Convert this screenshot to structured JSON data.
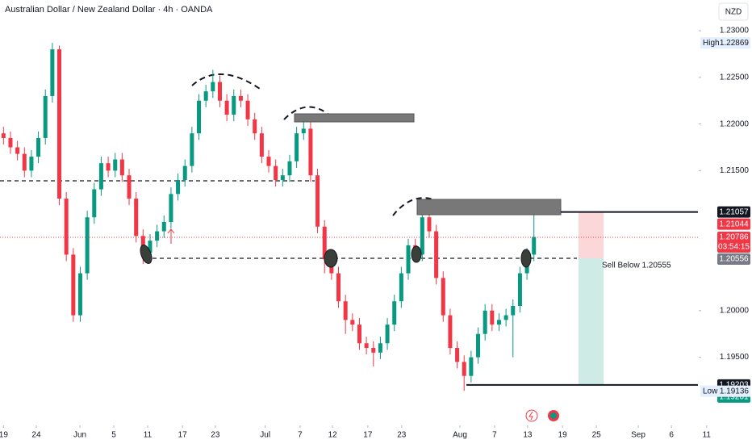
{
  "chart_data": {
    "type": "candlestick",
    "title": "Australian Dollar / New Zealand Dollar · 4h · OANDA",
    "currency": "NZD",
    "up_color": "#089981",
    "down_color": "#f23645",
    "xlim": [
      -1,
      199
    ],
    "ylim": [
      1.18787,
      1.23329
    ],
    "xticks": [
      {
        "value": 0,
        "label": "19"
      },
      {
        "value": 9.4,
        "label": "24"
      },
      {
        "value": 21.9,
        "label": "Jun"
      },
      {
        "value": 31.6,
        "label": "5"
      },
      {
        "value": 41.3,
        "label": "11"
      },
      {
        "value": 51.3,
        "label": "17"
      },
      {
        "value": 60.7,
        "label": "23"
      },
      {
        "value": 75,
        "label": "Jul"
      },
      {
        "value": 85,
        "label": "7"
      },
      {
        "value": 94.3,
        "label": "12"
      },
      {
        "value": 104.4,
        "label": "17"
      },
      {
        "value": 114.1,
        "label": "23"
      },
      {
        "value": 130.8,
        "label": "Aug"
      },
      {
        "value": 140.7,
        "label": "7"
      },
      {
        "value": 150.2,
        "label": "13"
      },
      {
        "value": 160.2,
        "label": "19"
      },
      {
        "value": 169.9,
        "label": "25"
      },
      {
        "value": 181.9,
        "label": "Sep"
      },
      {
        "value": 191.4,
        "label": "6"
      },
      {
        "value": 201.5,
        "label": "11"
      }
    ],
    "yticks": [
      {
        "value": 1.23,
        "label": "1.23000"
      },
      {
        "value": 1.225,
        "label": "1.22500"
      },
      {
        "value": 1.22,
        "label": "1.22000"
      },
      {
        "value": 1.215,
        "label": "1.21500"
      },
      {
        "value": 1.2,
        "label": "1.20000"
      },
      {
        "value": 1.195,
        "label": "1.19500"
      }
    ],
    "x": [
      0,
      2,
      4,
      6,
      8,
      10,
      12,
      14,
      16,
      18,
      20,
      22,
      24,
      26,
      28,
      30,
      32,
      34,
      36,
      38,
      40,
      42,
      44,
      46,
      48,
      50,
      52,
      54,
      56,
      58,
      60,
      62,
      64,
      66,
      68,
      70,
      72,
      74,
      76,
      78,
      80,
      82,
      84,
      86,
      88,
      90,
      92,
      94,
      96,
      98,
      100,
      102,
      104,
      106,
      108,
      110,
      112,
      114,
      116,
      118,
      120,
      122,
      124,
      126,
      128,
      130,
      132,
      134,
      136,
      138,
      140,
      142,
      144,
      146,
      148,
      150,
      152
    ],
    "candles": [
      [
        1.219,
        1.2197,
        1.2178,
        1.2185
      ],
      [
        1.2185,
        1.2192,
        1.2168,
        1.2175
      ],
      [
        1.2175,
        1.2182,
        1.2161,
        1.2168
      ],
      [
        1.2168,
        1.2175,
        1.2143,
        1.215
      ],
      [
        1.215,
        1.2172,
        1.2143,
        1.2165
      ],
      [
        1.2165,
        1.2192,
        1.2158,
        1.2185
      ],
      [
        1.2185,
        1.2237,
        1.2178,
        1.223
      ],
      [
        1.223,
        1.2287,
        1.2223,
        1.228
      ],
      [
        1.228,
        1.2284,
        1.2113,
        1.212
      ],
      [
        1.212,
        1.2127,
        1.2053,
        1.206
      ],
      [
        1.206,
        1.2067,
        1.1988,
        1.1995
      ],
      [
        1.1995,
        1.2047,
        1.1988,
        1.204
      ],
      [
        1.204,
        1.2107,
        1.2033,
        1.21
      ],
      [
        1.21,
        1.2137,
        1.2093,
        1.213
      ],
      [
        1.213,
        1.2165,
        1.2123,
        1.2158
      ],
      [
        1.2158,
        1.2165,
        1.2143,
        1.215
      ],
      [
        1.215,
        1.2169,
        1.2143,
        1.2162
      ],
      [
        1.2162,
        1.2169,
        1.2138,
        1.2145
      ],
      [
        1.2145,
        1.2152,
        1.2113,
        1.212
      ],
      [
        1.212,
        1.2127,
        1.2073,
        1.208
      ],
      [
        1.208,
        1.2087,
        1.205,
        1.2062
      ],
      [
        1.2062,
        1.2082,
        1.2055,
        1.2075
      ],
      [
        1.2075,
        1.2092,
        1.2068,
        1.2085
      ],
      [
        1.2085,
        1.2102,
        1.2078,
        1.2095
      ],
      [
        1.2095,
        1.2132,
        1.2088,
        1.2125
      ],
      [
        1.2125,
        1.2147,
        1.2118,
        1.214
      ],
      [
        1.214,
        1.2162,
        1.2133,
        1.2155
      ],
      [
        1.2155,
        1.2197,
        1.2148,
        1.219
      ],
      [
        1.219,
        1.2232,
        1.2183,
        1.2225
      ],
      [
        1.2225,
        1.2242,
        1.2218,
        1.2235
      ],
      [
        1.2235,
        1.2258,
        1.2228,
        1.2245
      ],
      [
        1.2245,
        1.2252,
        1.2218,
        1.2225
      ],
      [
        1.2225,
        1.2232,
        1.2203,
        1.221
      ],
      [
        1.221,
        1.2237,
        1.2203,
        1.223
      ],
      [
        1.223,
        1.2237,
        1.2218,
        1.2225
      ],
      [
        1.2225,
        1.2232,
        1.2198,
        1.2205
      ],
      [
        1.2205,
        1.2212,
        1.2183,
        1.219
      ],
      [
        1.219,
        1.2197,
        1.2158,
        1.2165
      ],
      [
        1.2165,
        1.2172,
        1.2148,
        1.2155
      ],
      [
        1.2155,
        1.2162,
        1.2133,
        1.214
      ],
      [
        1.214,
        1.2152,
        1.2133,
        1.2145
      ],
      [
        1.2145,
        1.2167,
        1.2138,
        1.216
      ],
      [
        1.216,
        1.2197,
        1.2153,
        1.219
      ],
      [
        1.219,
        1.2205,
        1.2183,
        1.2195
      ],
      [
        1.2195,
        1.2202,
        1.2138,
        1.2145
      ],
      [
        1.2145,
        1.2152,
        1.2083,
        1.209
      ],
      [
        1.209,
        1.2097,
        1.204,
        1.2055
      ],
      [
        1.2055,
        1.2062,
        1.2033,
        1.204
      ],
      [
        1.204,
        1.2047,
        1.2003,
        1.201
      ],
      [
        1.201,
        1.2017,
        1.1975,
        1.199
      ],
      [
        1.199,
        1.1997,
        1.1978,
        1.1985
      ],
      [
        1.1985,
        1.1992,
        1.1958,
        1.1965
      ],
      [
        1.1965,
        1.1972,
        1.1953,
        1.196
      ],
      [
        1.196,
        1.1967,
        1.194,
        1.1955
      ],
      [
        1.1955,
        1.1972,
        1.1948,
        1.1965
      ],
      [
        1.1965,
        1.1992,
        1.1958,
        1.1985
      ],
      [
        1.1985,
        1.2017,
        1.1978,
        1.201
      ],
      [
        1.201,
        1.2047,
        1.2003,
        1.204
      ],
      [
        1.204,
        1.2077,
        1.2033,
        1.207
      ],
      [
        1.207,
        1.2077,
        1.2053,
        1.206
      ],
      [
        1.206,
        1.2115,
        1.2053,
        1.21
      ],
      [
        1.21,
        1.2107,
        1.2078,
        1.2085
      ],
      [
        1.2085,
        1.2092,
        1.2028,
        1.2035
      ],
      [
        1.2035,
        1.2042,
        1.1988,
        1.1995
      ],
      [
        1.1995,
        1.2002,
        1.1953,
        1.196
      ],
      [
        1.196,
        1.1967,
        1.1938,
        1.1945
      ],
      [
        1.1945,
        1.1952,
        1.1914,
        1.193
      ],
      [
        1.193,
        1.1957,
        1.1923,
        1.195
      ],
      [
        1.195,
        1.1982,
        1.1943,
        1.1975
      ],
      [
        1.1975,
        1.2007,
        1.1968,
        1.2
      ],
      [
        1.2,
        1.2007,
        1.1978,
        1.1985
      ],
      [
        1.1985,
        1.1997,
        1.1978,
        1.199
      ],
      [
        1.199,
        1.2002,
        1.1983,
        1.1995
      ],
      [
        1.1995,
        1.2012,
        1.195,
        1.2005
      ],
      [
        1.2005,
        1.2047,
        1.1998,
        1.204
      ],
      [
        1.204,
        1.2067,
        1.2033,
        1.206
      ],
      [
        1.206,
        1.2105,
        1.2053,
        1.2079
      ]
    ],
    "price_tags": [
      {
        "value": 1.21057,
        "color": "#131722"
      },
      {
        "value": 1.21044,
        "color": "#f23645"
      },
      {
        "value": 1.20786,
        "color": "#f23645",
        "countdown": "03:54:15"
      },
      {
        "value": 1.20556,
        "color": "#787b86"
      },
      {
        "value": 1.19203,
        "color": "#131722"
      },
      {
        "value": 1.19201,
        "color": "#089981"
      }
    ],
    "extremes": [
      {
        "label": "High",
        "value": 1.22869
      },
      {
        "label": "Low",
        "value": 1.19136
      }
    ],
    "annotation": "Sell Below 1.20555"
  }
}
